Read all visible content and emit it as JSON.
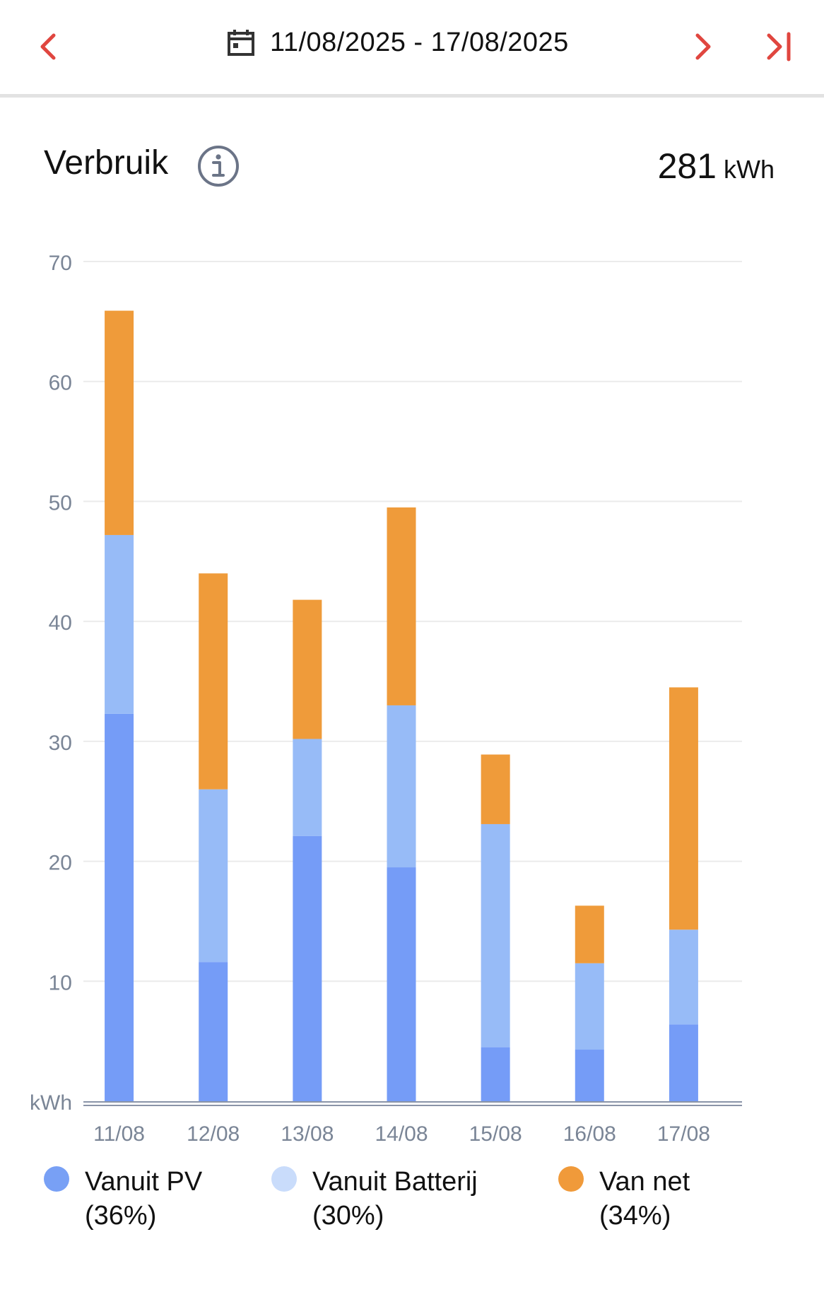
{
  "header": {
    "date_range": "11/08/2025 - 17/08/2025",
    "icons": {
      "prev": "chevron-left-icon",
      "next": "chevron-right-icon",
      "last": "skip-to-end-icon",
      "calendar": "calendar-icon"
    },
    "accent_color": "#e0463f"
  },
  "section": {
    "title": "Verbruik",
    "info_icon": "info-icon",
    "total_value": "281",
    "total_unit": "kWh"
  },
  "legend": [
    {
      "label": "Vanuit PV",
      "pct": "(36%)",
      "color": "#78a0f5"
    },
    {
      "label": "Vanuit Batterij",
      "pct": "(30%)",
      "color": "#c9dcfb"
    },
    {
      "label": "Van net",
      "pct": "(34%)",
      "color": "#f09a3a"
    }
  ],
  "chart_data": {
    "type": "bar",
    "stacked": true,
    "categories": [
      "11/08",
      "12/08",
      "13/08",
      "14/08",
      "15/08",
      "16/08",
      "17/08"
    ],
    "series": [
      {
        "name": "Vanuit PV",
        "color": "#759cf7",
        "values": [
          32.3,
          11.6,
          22.1,
          19.5,
          4.5,
          4.3,
          6.4
        ]
      },
      {
        "name": "Vanuit Batterij",
        "color": "#97bbf7",
        "values": [
          14.9,
          14.4,
          8.1,
          13.5,
          18.6,
          7.2,
          7.9
        ]
      },
      {
        "name": "Van net",
        "color": "#ef9b3a",
        "values": [
          18.7,
          18.0,
          11.6,
          16.5,
          5.8,
          4.8,
          20.2
        ]
      }
    ],
    "yticks": [
      "10",
      "20",
      "30",
      "40",
      "50",
      "60",
      "70"
    ],
    "ylabel": "kWh",
    "ylim": [
      0,
      70
    ],
    "grid": true
  }
}
